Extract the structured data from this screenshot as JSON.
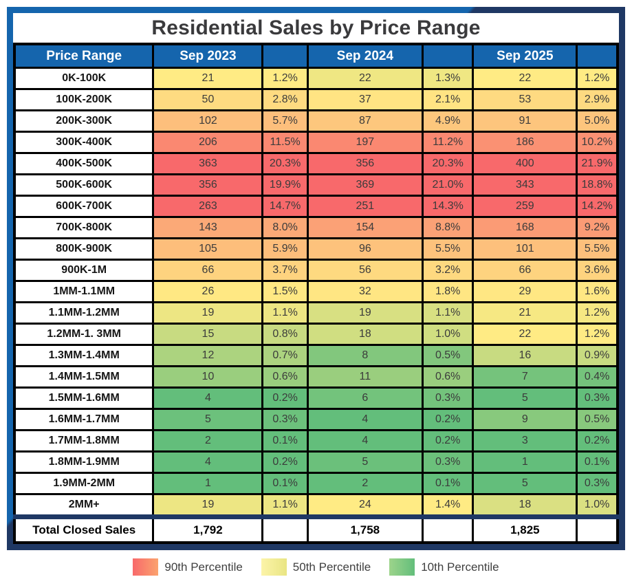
{
  "title": "Residential Sales by Price Range",
  "chart_data": {
    "type": "heatmap",
    "title": "Residential Sales by Price Range",
    "header": {
      "price_range": "Price Range",
      "periods": [
        "Sep 2023",
        "Sep 2024",
        "Sep 2025"
      ]
    },
    "value_columns_per_period": [
      "closed_sales_count",
      "share_of_total_pct"
    ],
    "rows": [
      {
        "label": "0K-100K",
        "counts": [
          21,
          22,
          22
        ],
        "pcts": [
          "1.2%",
          "1.3%",
          "1.2%"
        ]
      },
      {
        "label": "100K-200K",
        "counts": [
          50,
          37,
          53
        ],
        "pcts": [
          "2.8%",
          "2.1%",
          "2.9%"
        ]
      },
      {
        "label": "200K-300K",
        "counts": [
          102,
          87,
          91
        ],
        "pcts": [
          "5.7%",
          "4.9%",
          "5.0%"
        ]
      },
      {
        "label": "300K-400K",
        "counts": [
          206,
          197,
          186
        ],
        "pcts": [
          "11.5%",
          "11.2%",
          "10.2%"
        ]
      },
      {
        "label": "400K-500K",
        "counts": [
          363,
          356,
          400
        ],
        "pcts": [
          "20.3%",
          "20.3%",
          "21.9%"
        ]
      },
      {
        "label": "500K-600K",
        "counts": [
          356,
          369,
          343
        ],
        "pcts": [
          "19.9%",
          "21.0%",
          "18.8%"
        ]
      },
      {
        "label": "600K-700K",
        "counts": [
          263,
          251,
          259
        ],
        "pcts": [
          "14.7%",
          "14.3%",
          "14.2%"
        ]
      },
      {
        "label": "700K-800K",
        "counts": [
          143,
          154,
          168
        ],
        "pcts": [
          "8.0%",
          "8.8%",
          "9.2%"
        ]
      },
      {
        "label": "800K-900K",
        "counts": [
          105,
          96,
          101
        ],
        "pcts": [
          "5.9%",
          "5.5%",
          "5.5%"
        ]
      },
      {
        "label": "900K-1M",
        "counts": [
          66,
          56,
          66
        ],
        "pcts": [
          "3.7%",
          "3.2%",
          "3.6%"
        ]
      },
      {
        "label": "1MM-1.1MM",
        "counts": [
          26,
          32,
          29
        ],
        "pcts": [
          "1.5%",
          "1.8%",
          "1.6%"
        ]
      },
      {
        "label": "1.1MM-1.2MM",
        "counts": [
          19,
          19,
          21
        ],
        "pcts": [
          "1.1%",
          "1.1%",
          "1.2%"
        ]
      },
      {
        "label": "1.2MM-1. 3MM",
        "counts": [
          15,
          18,
          22
        ],
        "pcts": [
          "0.8%",
          "1.0%",
          "1.2%"
        ]
      },
      {
        "label": "1.3MM-1.4MM",
        "counts": [
          12,
          8,
          16
        ],
        "pcts": [
          "0.7%",
          "0.5%",
          "0.9%"
        ]
      },
      {
        "label": "1.4MM-1.5MM",
        "counts": [
          10,
          11,
          7
        ],
        "pcts": [
          "0.6%",
          "0.6%",
          "0.4%"
        ]
      },
      {
        "label": "1.5MM-1.6MM",
        "counts": [
          4,
          6,
          5
        ],
        "pcts": [
          "0.2%",
          "0.3%",
          "0.3%"
        ]
      },
      {
        "label": "1.6MM-1.7MM",
        "counts": [
          5,
          4,
          9
        ],
        "pcts": [
          "0.3%",
          "0.2%",
          "0.5%"
        ]
      },
      {
        "label": "1.7MM-1.8MM",
        "counts": [
          2,
          4,
          3
        ],
        "pcts": [
          "0.1%",
          "0.2%",
          "0.2%"
        ]
      },
      {
        "label": "1.8MM-1.9MM",
        "counts": [
          4,
          5,
          1
        ],
        "pcts": [
          "0.2%",
          "0.3%",
          "0.1%"
        ]
      },
      {
        "label": "1.9MM-2MM",
        "counts": [
          1,
          2,
          5
        ],
        "pcts": [
          "0.1%",
          "0.1%",
          "0.3%"
        ]
      },
      {
        "label": "2MM+",
        "counts": [
          19,
          24,
          18
        ],
        "pcts": [
          "1.1%",
          "1.4%",
          "1.0%"
        ]
      }
    ],
    "totals": {
      "label": "Total Closed Sales",
      "values": [
        "1,792",
        "1,758",
        "1,825"
      ]
    },
    "color_scale": {
      "red": "#F8696B",
      "yellow": "#FFEB84",
      "green": "#63BE7B",
      "red_at": "90th percentile",
      "yellow_at": "50th percentile",
      "green_at": "10th percentile"
    },
    "legend_position": "bottom"
  },
  "legend": [
    {
      "label": "90th Percentile",
      "swatch_from": "#F8696B",
      "swatch_to": "#FBA36E"
    },
    {
      "label": "50th Percentile",
      "swatch_from": "#FCF4A9",
      "swatch_to": "#E9E583"
    },
    {
      "label": "10th Percentile",
      "swatch_from": "#9DD48B",
      "swatch_to": "#63BE7B"
    }
  ],
  "colors": {
    "header_bg": "#1565AD",
    "header_text": "#FFFFFF",
    "frame_blue": "#1565AD",
    "frame_navy": "#1F3864",
    "grid_line": "#000000",
    "title_text": "#3A3A3C"
  }
}
